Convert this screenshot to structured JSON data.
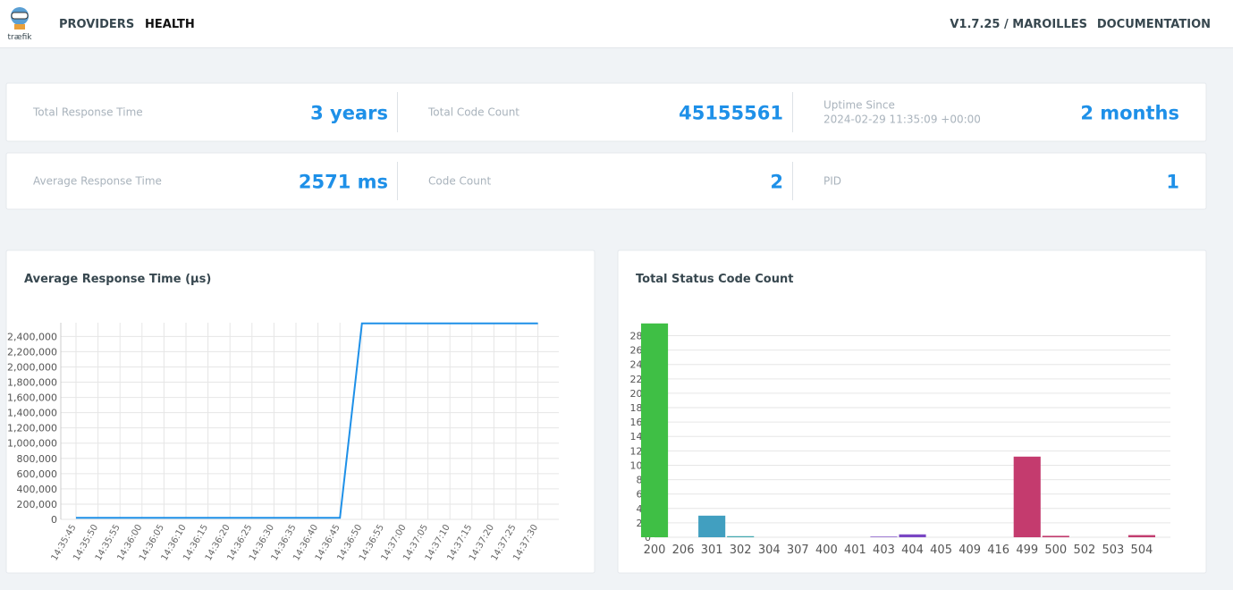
{
  "header": {
    "logo": "træfik",
    "nav": [
      "PROVIDERS",
      "HEALTH"
    ],
    "version": "V1.7.25 / MAROILLES",
    "docs": "DOCUMENTATION"
  },
  "stats": [
    [
      {
        "label": "Total Response Time",
        "value": "3 years"
      },
      {
        "label": "Total Code Count",
        "value": "45155561"
      },
      {
        "label": "Uptime Since",
        "sub": "2024-02-29 11:35:09 +00:00",
        "value": "2 months"
      }
    ],
    [
      {
        "label": "Average Response Time",
        "value": "2571 ms"
      },
      {
        "label": "Code Count",
        "value": "2"
      },
      {
        "label": "PID",
        "value": "1"
      }
    ]
  ],
  "chart_data": [
    {
      "type": "line",
      "title": "Average Response Time (µs)",
      "color": "#1e90e8",
      "grid": true,
      "categories": [
        "14:35:45",
        "14:35:50",
        "14:35:55",
        "14:36:00",
        "14:36:05",
        "14:36:10",
        "14:36:15",
        "14:36:20",
        "14:36:25",
        "14:36:30",
        "14:36:35",
        "14:36:40",
        "14:36:45",
        "14:36:50",
        "14:36:55",
        "14:37:00",
        "14:37:05",
        "14:37:10",
        "14:37:15",
        "14:37:20",
        "14:37:25",
        "14:37:30"
      ],
      "values": [
        20000,
        20000,
        20000,
        20000,
        20000,
        20000,
        20000,
        20000,
        20000,
        20000,
        20000,
        20000,
        20000,
        2571000,
        2571000,
        2571000,
        2571000,
        2571000,
        2571000,
        2571000,
        2571000,
        2571000
      ],
      "ylim": [
        0,
        2580000
      ],
      "yticks": [
        0,
        {
          "value": 200000,
          "label": "200,000"
        },
        {
          "value": 400000,
          "label": "400,000"
        },
        {
          "value": 600000,
          "label": "600,000"
        },
        {
          "value": 800000,
          "label": "800,000"
        },
        {
          "value": 1000000,
          "label": "1,000,000"
        },
        {
          "value": 1200000,
          "label": "1,200,000"
        },
        {
          "value": 1400000,
          "label": "1,400,000"
        },
        {
          "value": 1600000,
          "label": "1,600,000"
        },
        {
          "value": 1800000,
          "label": "1,800,000"
        },
        {
          "value": 2000000,
          "label": "2,000,000"
        },
        {
          "value": 2200000,
          "label": "2,200,000"
        },
        {
          "value": 2400000,
          "label": "2,400,000"
        }
      ]
    },
    {
      "type": "bar",
      "title": "Total Status Code Count",
      "grid": true,
      "categories": [
        "200",
        "206",
        "301",
        "302",
        "304",
        "307",
        "400",
        "401",
        "403",
        "404",
        "405",
        "409",
        "416",
        "499",
        "500",
        "502",
        "503",
        "504"
      ],
      "values": [
        29700000,
        0,
        3000000,
        150000,
        0,
        0,
        0,
        0,
        100000,
        400000,
        0,
        0,
        0,
        11200000,
        200000,
        0,
        0,
        300000
      ],
      "colors": [
        "#3fbf45",
        "#3fbf45",
        "#419fc0",
        "#41a8b0",
        "#4f86c6",
        "#4f86c6",
        "#6b6fc9",
        "#6b6fc9",
        "#8a5ec9",
        "#7a46c4",
        "#9b4fbf",
        "#a84aa5",
        "#b5438c",
        "#c43b6e",
        "#c23d6f",
        "#c23d6f",
        "#c23d6f",
        "#c23d6f"
      ],
      "ylim": [
        0,
        29800000
      ],
      "yticks": [
        0,
        {
          "value": 2000000,
          "label": "2M"
        },
        {
          "value": 4000000,
          "label": "4M"
        },
        {
          "value": 6000000,
          "label": "6M"
        },
        {
          "value": 8000000,
          "label": "8M"
        },
        {
          "value": 10000000,
          "label": "10M"
        },
        {
          "value": 12000000,
          "label": "12M"
        },
        {
          "value": 14000000,
          "label": "14M"
        },
        {
          "value": 16000000,
          "label": "16M"
        },
        {
          "value": 18000000,
          "label": "18M"
        },
        {
          "value": 20000000,
          "label": "20M"
        },
        {
          "value": 22000000,
          "label": "22M"
        },
        {
          "value": 24000000,
          "label": "24M"
        },
        {
          "value": 26000000,
          "label": "26M"
        },
        {
          "value": 28000000,
          "label": "28M"
        }
      ]
    }
  ]
}
